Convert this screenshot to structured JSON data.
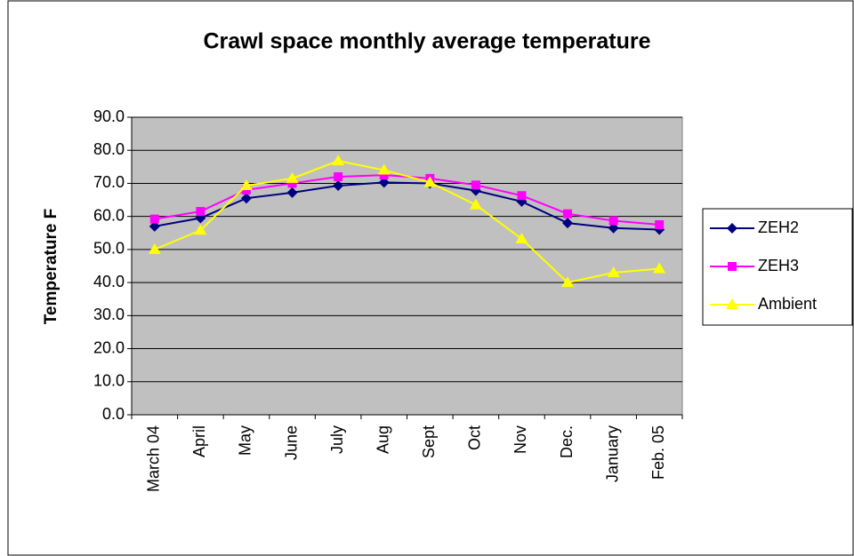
{
  "chart_data": {
    "type": "line",
    "title": "Crawl space monthly average temperature",
    "y_label": "Temperature F",
    "categories": [
      "March 04",
      "April",
      "May",
      "June",
      "July",
      "Aug",
      "Sept",
      "Oct",
      "Nov",
      "Dec.",
      "January",
      "Feb. 05"
    ],
    "series": [
      {
        "name": "ZEH2",
        "color": "#000080",
        "marker": "diamond",
        "values": [
          57.0,
          59.5,
          65.5,
          67.2,
          69.3,
          70.3,
          70.0,
          67.8,
          64.5,
          58.0,
          56.5,
          56.0
        ]
      },
      {
        "name": "ZEH3",
        "color": "#ff00ff",
        "marker": "square",
        "values": [
          59.2,
          61.5,
          68.0,
          70.0,
          72.0,
          72.5,
          71.5,
          69.5,
          66.3,
          60.8,
          58.7,
          57.5
        ]
      },
      {
        "name": "Ambient",
        "color": "#ffff00",
        "marker": "triangle",
        "values": [
          50.0,
          55.8,
          69.3,
          71.5,
          76.8,
          74.0,
          70.3,
          63.5,
          53.2,
          40.0,
          43.0,
          44.2
        ]
      }
    ],
    "ylim": [
      0,
      90
    ],
    "yticks": [
      {
        "value": 0,
        "label": "0.0"
      },
      {
        "value": 10,
        "label": "10.0"
      },
      {
        "value": 20,
        "label": "20.0"
      },
      {
        "value": 30,
        "label": "30.0"
      },
      {
        "value": 40,
        "label": "40.0"
      },
      {
        "value": 50,
        "label": "50.0"
      },
      {
        "value": 60,
        "label": "60.0"
      },
      {
        "value": 70,
        "label": "70.0"
      },
      {
        "value": 80,
        "label": "80.0"
      },
      {
        "value": 90,
        "label": "90.0"
      }
    ],
    "grid": true,
    "plot_background": "#c0c0c0",
    "legend": "right"
  }
}
